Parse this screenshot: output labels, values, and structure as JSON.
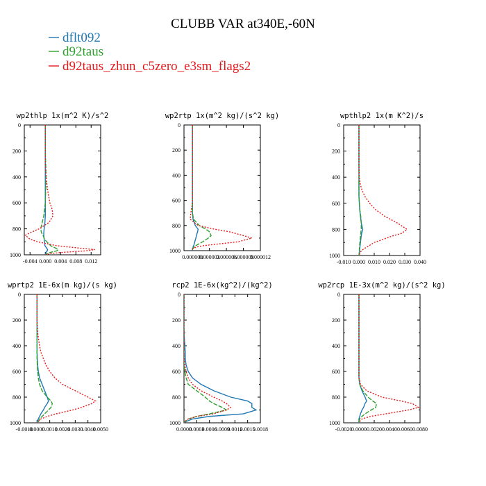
{
  "title": "CLUBB VAR at340E,-60N",
  "legend": [
    {
      "label": "dflt092",
      "color": "#1f77b4"
    },
    {
      "label": "d92taus",
      "color": "#2ca02c"
    },
    {
      "label": "d92taus_zhun_c5zero_e3sm_flags2",
      "color": "#e41a1c"
    }
  ],
  "chart_data": [
    {
      "type": "line",
      "title": "wp2thlp  1x(m^2 K)/s^2",
      "ylim": [
        0,
        1000
      ],
      "y_inverted": true,
      "yticks": [
        0,
        200,
        400,
        600,
        800,
        1000
      ],
      "xlim": [
        -0.0055,
        0.0145
      ],
      "xticks": [
        -0.004,
        0.0,
        0.004,
        0.008,
        0.012
      ],
      "xtick_labels": [
        "-0.004",
        "0.000",
        "0.004",
        "0.008",
        "0.012"
      ],
      "y": [
        0,
        100,
        200,
        300,
        400,
        500,
        600,
        650,
        700,
        750,
        800,
        830,
        850,
        880,
        900,
        930,
        950,
        960,
        970,
        980,
        990,
        1000
      ],
      "series": [
        {
          "name": "dflt092",
          "values": [
            0,
            0,
            0,
            0,
            0,
            0,
            0,
            0,
            0,
            -0.0001,
            -0.0003,
            -0.0004,
            -0.0004,
            -0.0003,
            -0.0002,
            -0.0001,
            0.0004,
            0.0006,
            0.0005,
            0.0002,
            0.0001,
            0
          ]
        },
        {
          "name": "d92taus",
          "values": [
            0,
            0,
            0,
            0.0001,
            0.0002,
            0.0001,
            0,
            -0.0002,
            -0.0004,
            -0.0008,
            -0.0012,
            -0.001,
            -0.0006,
            -0.0002,
            0.0004,
            0.0014,
            0.0028,
            0.0034,
            0.003,
            0.0015,
            0.0005,
            0
          ]
        },
        {
          "name": "d92taus_zhun_c5zero_e3sm_flags2",
          "values": [
            0,
            0,
            0,
            0,
            0.0002,
            0.0006,
            0.0012,
            0.0018,
            0.002,
            0.001,
            -0.0016,
            -0.004,
            -0.0052,
            -0.004,
            -0.002,
            0.003,
            0.0095,
            0.013,
            0.0105,
            0.005,
            0.0015,
            0
          ]
        }
      ]
    },
    {
      "type": "line",
      "title": "wp2rtp  1x(m^2 kg)/(s^2 kg)",
      "ylim": [
        0,
        1000
      ],
      "y_inverted": true,
      "yticks": [
        0,
        200,
        400,
        600,
        800,
        1000
      ],
      "xlim": [
        -1.5e-06,
        1.2e-05
      ],
      "xticks": [
        0.0,
        3e-06,
        6e-06,
        9e-06,
        1.2e-05
      ],
      "xtick_labels": [
        "0.000000",
        "0.000003",
        "0.000006",
        "0.000009",
        "0.000012"
      ],
      "y": [
        0,
        100,
        200,
        300,
        400,
        500,
        600,
        650,
        700,
        750,
        800,
        830,
        850,
        880,
        900,
        930,
        950,
        960,
        970,
        980,
        990,
        1000
      ],
      "series": [
        {
          "name": "dflt092",
          "values": [
            0,
            0,
            0,
            0,
            0,
            0,
            0,
            0,
            0,
            1e-07,
            5e-07,
            1e-06,
            9e-07,
            7e-07,
            6e-07,
            4e-07,
            3e-07,
            2e-07,
            1e-07,
            1e-07,
            0,
            0
          ]
        },
        {
          "name": "d92taus",
          "values": [
            0,
            0,
            0,
            0,
            0,
            0,
            0,
            0,
            0,
            2e-07,
            1.2e-06,
            2.4e-06,
            3e-06,
            3.3e-06,
            2.8e-06,
            1.8e-06,
            1e-06,
            6e-07,
            3e-07,
            1e-07,
            0,
            0
          ]
        },
        {
          "name": "d92taus_zhun_c5zero_e3sm_flags2",
          "values": [
            0,
            0,
            0,
            0,
            0,
            0,
            0,
            -1e-07,
            -3e-07,
            -4e-07,
            1e-06,
            4e-06,
            6.5e-06,
            9e-06,
            1.05e-05,
            8e-06,
            4e-06,
            2e-06,
            8e-07,
            2e-07,
            0,
            0
          ]
        }
      ]
    },
    {
      "type": "line",
      "title": "wpthlp2  1x(m K^2)/s",
      "ylim": [
        0,
        1000
      ],
      "y_inverted": true,
      "yticks": [
        0,
        200,
        400,
        600,
        800,
        1000
      ],
      "xlim": [
        -0.01,
        0.04
      ],
      "xticks": [
        -0.01,
        0.0,
        0.01,
        0.02,
        0.03,
        0.04
      ],
      "xtick_labels": [
        "-0.010",
        "0.000",
        "0.010",
        "0.020",
        "0.030",
        "0.040"
      ],
      "y": [
        0,
        100,
        200,
        300,
        400,
        450,
        500,
        550,
        600,
        650,
        700,
        750,
        800,
        830,
        850,
        880,
        900,
        930,
        950,
        970,
        990,
        1000
      ],
      "series": [
        {
          "name": "dflt092",
          "values": [
            0,
            0,
            0,
            0,
            0,
            0,
            0,
            0,
            0.0003,
            0.0005,
            0.001,
            0.0015,
            0.0025,
            0.0018,
            0.0015,
            0.0012,
            0.001,
            0.0007,
            0.0005,
            0.0003,
            0.0001,
            0
          ]
        },
        {
          "name": "d92taus",
          "values": [
            0,
            0,
            0,
            0,
            0,
            0,
            0,
            0,
            0.0003,
            0.0006,
            0.0012,
            0.0015,
            0.0015,
            0.0012,
            0.001,
            0.0008,
            0.0006,
            0.0004,
            0.0003,
            0.0002,
            0.0001,
            0
          ]
        },
        {
          "name": "d92taus_zhun_c5zero_e3sm_flags2",
          "values": [
            0,
            0,
            0,
            0,
            0.0002,
            0.0008,
            0.002,
            0.004,
            0.007,
            0.011,
            0.017,
            0.025,
            0.0315,
            0.028,
            0.022,
            0.015,
            0.01,
            0.006,
            0.003,
            0.0012,
            0.0003,
            0
          ]
        }
      ]
    },
    {
      "type": "line",
      "title": "wprtp2  1E-6x(m kg)/(s kg)",
      "ylim": [
        0,
        1000
      ],
      "y_inverted": true,
      "yticks": [
        0,
        200,
        400,
        600,
        800,
        1000
      ],
      "xlim": [
        -0.001,
        0.005
      ],
      "xticks": [
        -0.001,
        0.0,
        0.001,
        0.002,
        0.003,
        0.004,
        0.005
      ],
      "xtick_labels": [
        "-0.0010",
        "0.0000",
        "0.0010",
        "0.0020",
        "0.0030",
        "0.0040",
        "0.0050"
      ],
      "y": [
        0,
        100,
        200,
        300,
        400,
        450,
        500,
        550,
        600,
        650,
        700,
        750,
        800,
        830,
        850,
        880,
        900,
        930,
        950,
        970,
        990,
        1000
      ],
      "series": [
        {
          "name": "dflt092",
          "values": [
            0,
            0,
            0,
            0,
            0,
            0,
            2e-05,
            5e-05,
            0.0001,
            0.0002,
            0.0004,
            0.0006,
            0.0008,
            0.0009,
            0.0008,
            0.0006,
            0.0005,
            0.0003,
            0.0002,
            0.0001,
            0,
            0
          ]
        },
        {
          "name": "d92taus",
          "values": [
            0,
            0,
            0,
            0,
            0,
            0,
            0,
            2e-05,
            5e-05,
            0.0001,
            0.0002,
            0.0004,
            0.0008,
            0.0011,
            0.0012,
            0.0011,
            0.0009,
            0.0006,
            0.0004,
            0.0002,
            0.0001,
            0
          ]
        },
        {
          "name": "d92taus_zhun_c5zero_e3sm_flags2",
          "values": [
            0,
            0,
            0,
            5e-05,
            0.0002,
            0.0003,
            0.0005,
            0.0007,
            0.001,
            0.0014,
            0.002,
            0.003,
            0.004,
            0.0046,
            0.0043,
            0.0035,
            0.0028,
            0.0015,
            0.0008,
            0.0003,
            0.0001,
            0
          ]
        }
      ]
    },
    {
      "type": "line",
      "title": "rcp2  1E-6x(kg^2)/(kg^2)",
      "ylim": [
        0,
        1000
      ],
      "y_inverted": true,
      "yticks": [
        0,
        200,
        400,
        600,
        800,
        1000
      ],
      "xlim": [
        0,
        0.0018
      ],
      "xticks": [
        0.0,
        0.0003,
        0.0006,
        0.0009,
        0.0012,
        0.0015,
        0.0018
      ],
      "xtick_labels": [
        "0.0000",
        "0.0003",
        "0.0006",
        "0.0009",
        "0.0012",
        "0.0015",
        "0.0018"
      ],
      "y": [
        0,
        100,
        200,
        300,
        400,
        450,
        500,
        550,
        600,
        650,
        700,
        750,
        800,
        830,
        850,
        880,
        900,
        930,
        950,
        970,
        990,
        1000
      ],
      "series": [
        {
          "name": "dflt092",
          "values": [
            0,
            0,
            0,
            0,
            2e-05,
            3e-05,
            3e-05,
            5e-05,
            0.0001,
            0.0002,
            0.0004,
            0.0007,
            0.0011,
            0.0015,
            0.0016,
            0.0016,
            0.0017,
            0.0014,
            0.0006,
            0.0002,
            5e-05,
            0
          ]
        },
        {
          "name": "d92taus",
          "values": [
            0,
            0,
            0,
            0,
            0,
            0,
            0,
            0,
            2e-05,
            5e-05,
            0.0001,
            0.0003,
            0.0005,
            0.0006,
            0.0007,
            0.0009,
            0.001,
            0.0006,
            0.0003,
            0.0001,
            3e-05,
            0
          ]
        },
        {
          "name": "d92taus_zhun_c5zero_e3sm_flags2",
          "values": [
            0,
            0,
            0,
            0,
            0,
            0,
            0,
            2e-05,
            5e-05,
            0.0001,
            0.0002,
            0.0004,
            0.0007,
            0.0009,
            0.001,
            0.0011,
            0.001,
            0.0007,
            0.0003,
            0.0001,
            2e-05,
            0
          ]
        }
      ]
    },
    {
      "type": "line",
      "title": "wp2rcp  1E-3x(m^2 kg)/(s^2 kg)",
      "ylim": [
        0,
        1000
      ],
      "y_inverted": true,
      "yticks": [
        0,
        200,
        400,
        600,
        800,
        1000
      ],
      "xlim": [
        -0.002,
        0.008
      ],
      "xticks": [
        -0.002,
        0.0,
        0.002,
        0.004,
        0.006,
        0.008
      ],
      "xtick_labels": [
        "-0.0020",
        "0.0000",
        "0.0020",
        "0.0040",
        "0.0060",
        "0.0080"
      ],
      "y": [
        0,
        100,
        200,
        300,
        400,
        450,
        500,
        550,
        600,
        650,
        700,
        750,
        800,
        830,
        850,
        880,
        900,
        930,
        950,
        970,
        990,
        1000
      ],
      "series": [
        {
          "name": "dflt092",
          "values": [
            0,
            0,
            0,
            0,
            0,
            0,
            0,
            0,
            0,
            0,
            0.0001,
            0.0004,
            0.0008,
            0.001,
            0.0008,
            0.0006,
            0.0004,
            0.0002,
            0.0001,
            0,
            0,
            0
          ]
        },
        {
          "name": "d92taus",
          "values": [
            0,
            0,
            0,
            0,
            0,
            0,
            0,
            0,
            0,
            0,
            0.0001,
            0.0005,
            0.0012,
            0.0018,
            0.0023,
            0.0022,
            0.0016,
            0.0008,
            0.0004,
            0.0001,
            0,
            0
          ]
        },
        {
          "name": "d92taus_zhun_c5zero_e3sm_flags2",
          "values": [
            0,
            0,
            0,
            0,
            0,
            0,
            0,
            0,
            0,
            0,
            0.0002,
            0.001,
            0.003,
            0.0055,
            0.007,
            0.0078,
            0.0065,
            0.0035,
            0.0015,
            0.0004,
            0.0001,
            0
          ]
        }
      ]
    }
  ]
}
